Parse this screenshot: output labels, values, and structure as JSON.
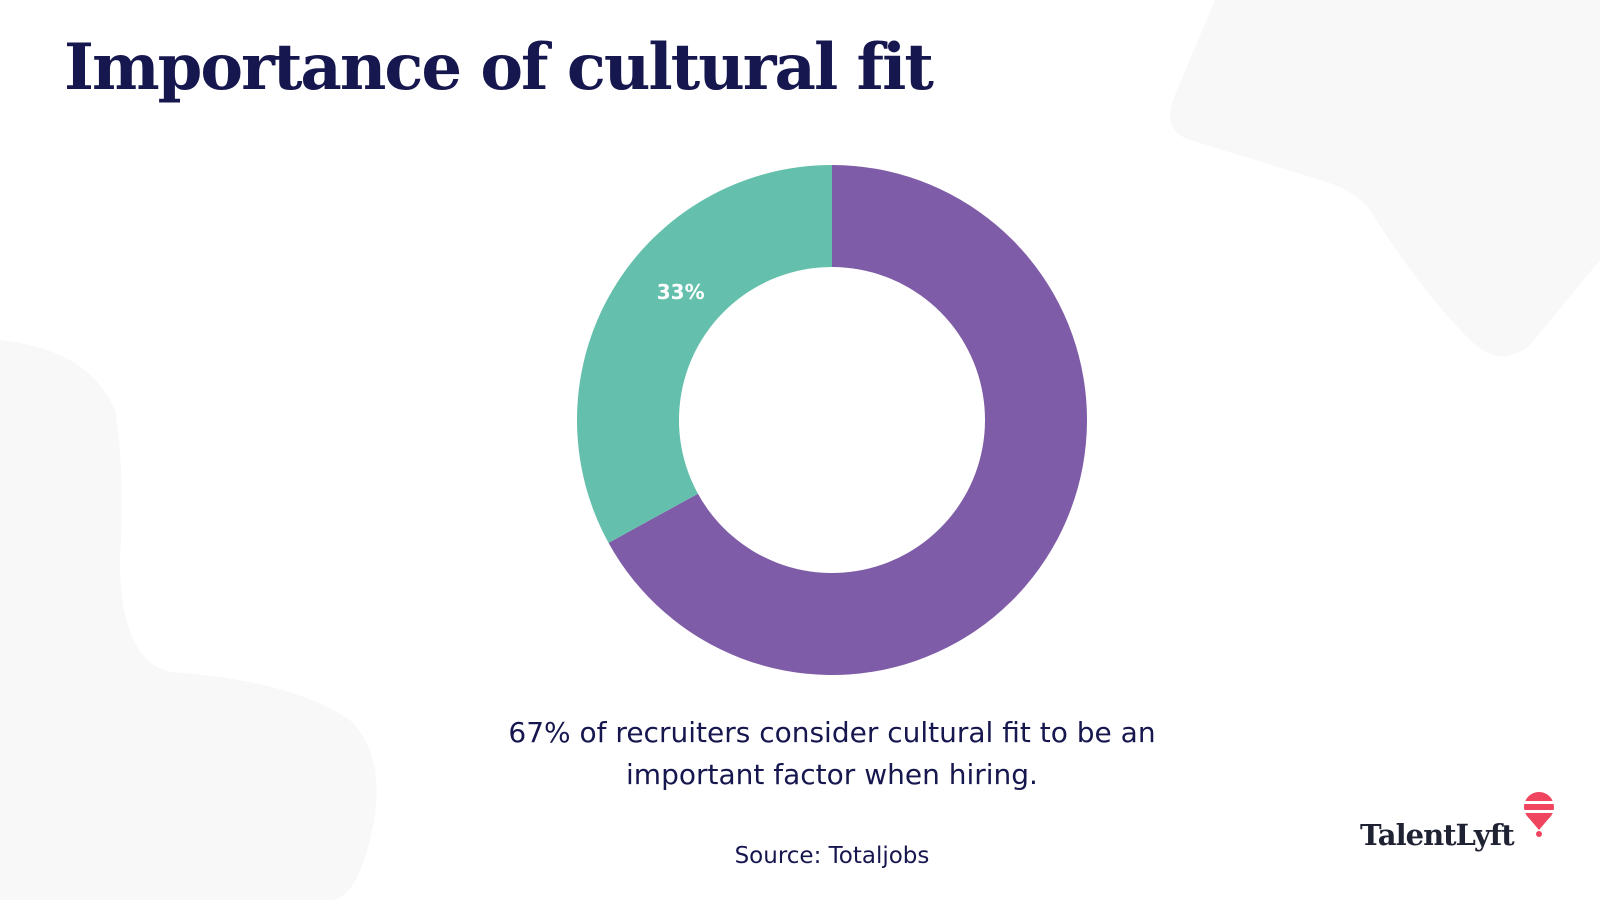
{
  "title": "Importance of cultural fit",
  "chart_data": {
    "type": "pie",
    "donut": true,
    "slices": [
      {
        "label": "67%",
        "value": 67,
        "color": "#7f5ca7"
      },
      {
        "label": "33%",
        "value": 33,
        "color": "#64c0ac"
      }
    ]
  },
  "caption": {
    "line1": "67% of recruiters consider cultural fit to be an",
    "line2": "important factor when hiring."
  },
  "source": "Source: Totaljobs",
  "logo": {
    "text": "TalentLyft",
    "accent": "#f0455f"
  }
}
